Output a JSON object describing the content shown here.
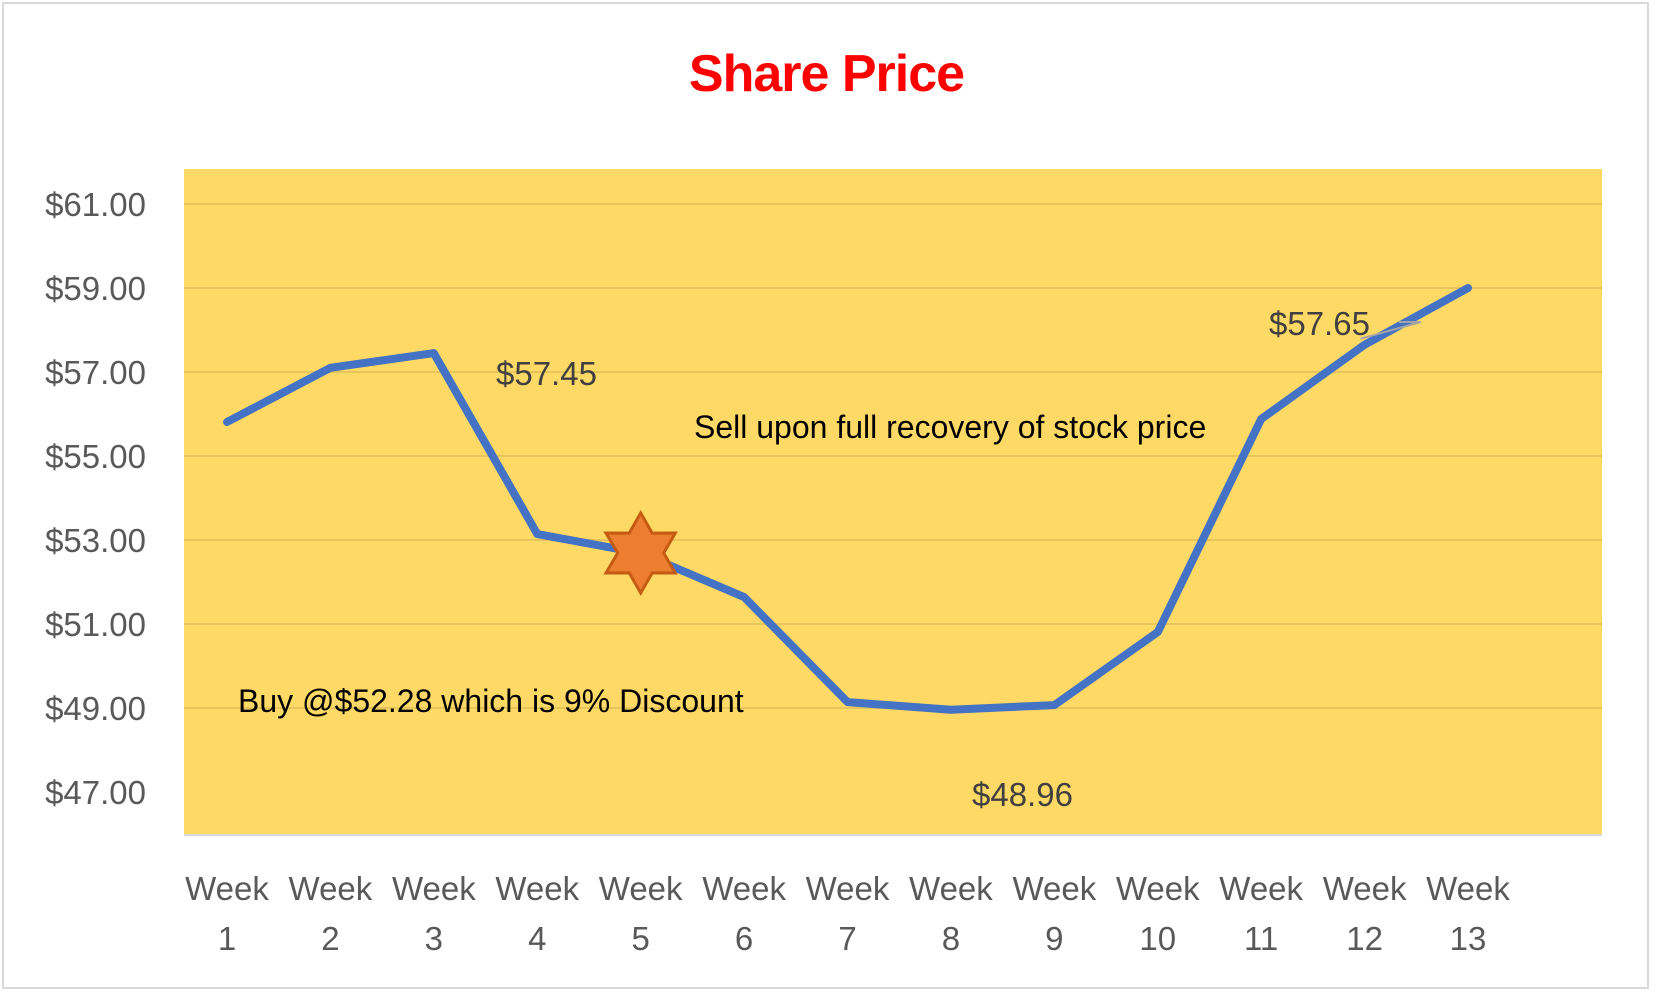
{
  "chart": {
    "title": "Share Price",
    "title_color": "#ff0000",
    "plot_bg": "#ffd966",
    "line_color": "#4472c4",
    "marker_color": "#ed7d31",
    "marker_stroke": "#c55a11"
  },
  "annotations": {
    "buy": "Buy @$52.28 which is 9% Discount",
    "sell": "Sell upon full recovery of stock price"
  },
  "data_labels": {
    "week3": "$57.45",
    "week8": "$48.96",
    "week12": "$57.65"
  },
  "y_ticks": [
    "$61.00",
    "$59.00",
    "$57.00",
    "$55.00",
    "$53.00",
    "$51.00",
    "$49.00",
    "$47.00"
  ],
  "x_ticks": [
    {
      "l1": "Week",
      "l2": "1"
    },
    {
      "l1": "Week",
      "l2": "2"
    },
    {
      "l1": "Week",
      "l2": "3"
    },
    {
      "l1": "Week",
      "l2": "4"
    },
    {
      "l1": "Week",
      "l2": "5"
    },
    {
      "l1": "Week",
      "l2": "6"
    },
    {
      "l1": "Week",
      "l2": "7"
    },
    {
      "l1": "Week",
      "l2": "8"
    },
    {
      "l1": "Week",
      "l2": "9"
    },
    {
      "l1": "Week",
      "l2": "10"
    },
    {
      "l1": "Week",
      "l2": "11"
    },
    {
      "l1": "Week",
      "l2": "12"
    },
    {
      "l1": "Week",
      "l2": "13"
    }
  ],
  "chart_data": {
    "type": "line",
    "title": "Share Price",
    "xlabel": "",
    "ylabel": "",
    "categories": [
      "Week 1",
      "Week 2",
      "Week 3",
      "Week 4",
      "Week 5",
      "Week 6",
      "Week 7",
      "Week 8",
      "Week 9",
      "Week 10",
      "Week 11",
      "Week 12",
      "Week 13"
    ],
    "series": [
      {
        "name": "Share Price",
        "values": [
          55.81,
          57.1,
          57.45,
          53.14,
          52.69,
          51.64,
          49.14,
          48.96,
          49.07,
          50.81,
          55.88,
          57.65,
          59.0
        ]
      }
    ],
    "ylim": [
      47,
      61
    ],
    "y_tick_step": 2,
    "grid": "horizontal",
    "legend": "none",
    "data_labels": [
      {
        "category": "Week 3",
        "text": "$57.45"
      },
      {
        "category": "Week 8",
        "text": "$48.96"
      },
      {
        "category": "Week 12",
        "text": "$57.65"
      }
    ],
    "markers": [
      {
        "category": "Week 5",
        "shape": "six-point-star",
        "color": "#ed7d31"
      }
    ],
    "annotations": [
      "Buy @$52.28 which is 9% Discount",
      "Sell upon full recovery of stock price"
    ]
  }
}
